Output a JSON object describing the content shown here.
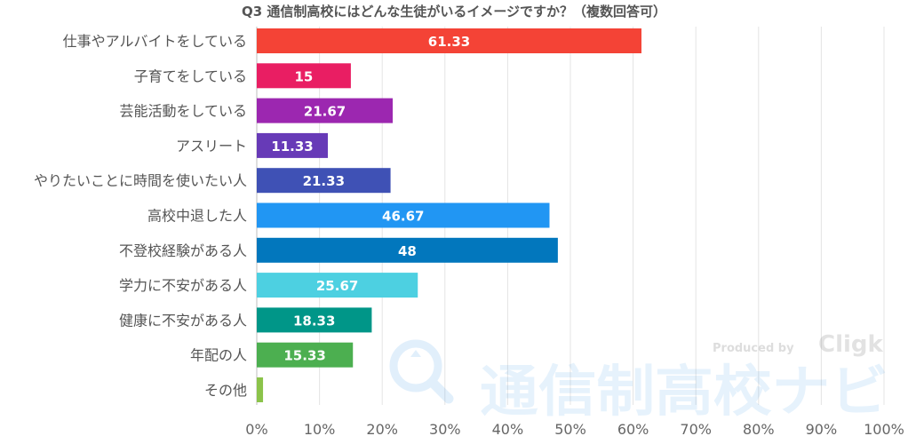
{
  "chart_data": {
    "type": "bar",
    "orientation": "horizontal",
    "title": "Q3 通信制高校にはどんな生徒がいるイメージですか？（複数回答可）",
    "categories": [
      "仕事やアルバイトをしている",
      "子育てをしている",
      "芸能活動をしている",
      "アスリート",
      "やりたいことに時間を使いたい人",
      "高校中退した人",
      "不登校経験がある人",
      "学力に不安がある人",
      "健康に不安がある人",
      "年配の人",
      "その他"
    ],
    "values": [
      61.33,
      15,
      21.67,
      11.33,
      21.33,
      46.67,
      48,
      25.67,
      18.33,
      15.33,
      1
    ],
    "value_labels": [
      "61.33",
      "15",
      "21.67",
      "11.33",
      "21.33",
      "46.67",
      "48",
      "25.67",
      "18.33",
      "15.33",
      ""
    ],
    "bar_colors": [
      "#f44336",
      "#e91e63",
      "#9c27b0",
      "#673ab7",
      "#3f51b5",
      "#2196f3",
      "#0277bd",
      "#4dd0e1",
      "#009688",
      "#4caf50",
      "#8bc34a"
    ],
    "xlim": [
      0,
      100
    ],
    "x_ticks": [
      "0%",
      "10%",
      "20%",
      "30%",
      "40%",
      "50%",
      "60%",
      "70%",
      "80%",
      "90%",
      "100%"
    ],
    "grid": true
  },
  "watermark": {
    "produced_by": "Produced by",
    "brand": "Cligk",
    "site_name": "通信制高校ナビ"
  }
}
